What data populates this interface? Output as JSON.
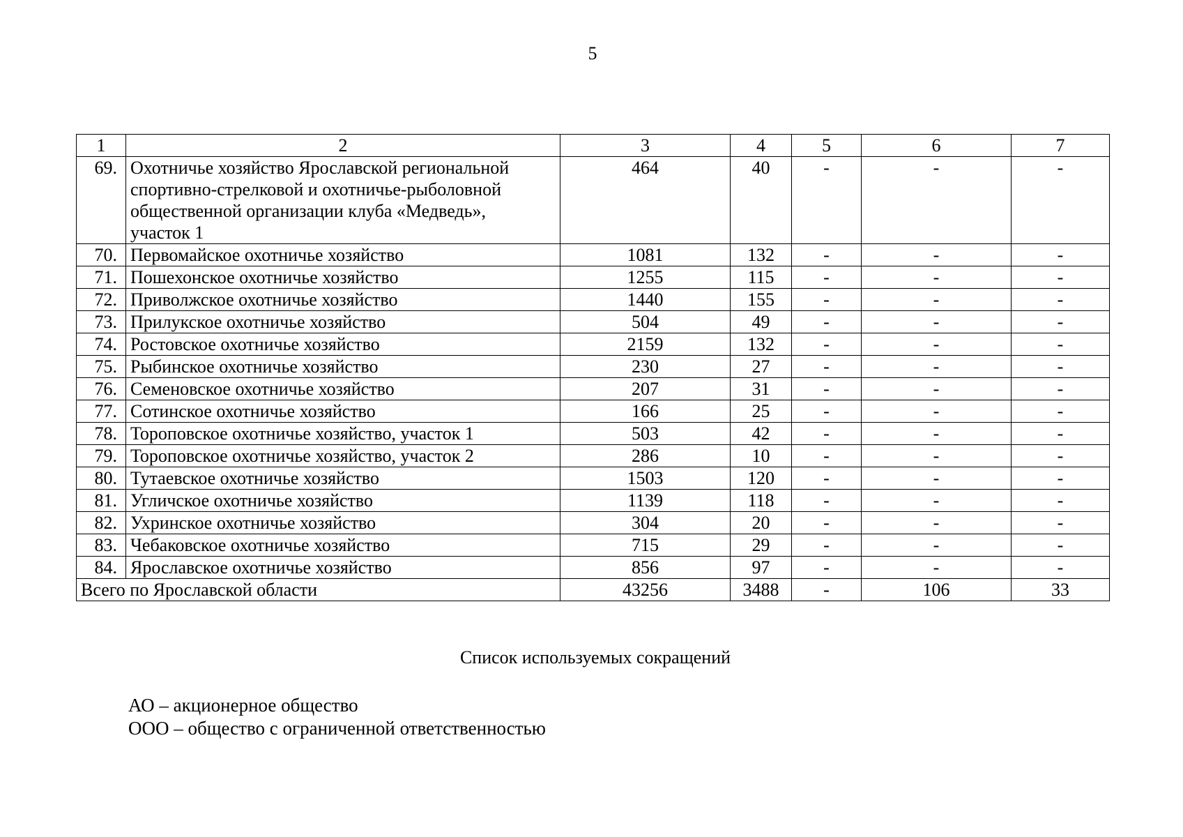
{
  "page_number": "5",
  "table": {
    "headers": [
      "1",
      "2",
      "3",
      "4",
      "5",
      "6",
      "7"
    ],
    "rows": [
      {
        "n": "69.",
        "name_lines": [
          "Охотничье хозяйство Ярославской региональной",
          "спортивно-стрелковой и охотничье-рыболовной",
          "общественной организации клуба «Медведь»,",
          "участок 1"
        ],
        "c3": "464",
        "c4": "40",
        "c5": "-",
        "c6": "-",
        "c7": "-"
      },
      {
        "n": "70.",
        "name": "Первомайское охотничье хозяйство",
        "c3": "1081",
        "c4": "132",
        "c5": "-",
        "c6": "-",
        "c7": "-"
      },
      {
        "n": "71.",
        "name": "Пошехонское охотничье хозяйство",
        "c3": "1255",
        "c4": "115",
        "c5": "-",
        "c6": "-",
        "c7": "-"
      },
      {
        "n": "72.",
        "name": "Приволжское охотничье хозяйство",
        "c3": "1440",
        "c4": "155",
        "c5": "-",
        "c6": "-",
        "c7": "-"
      },
      {
        "n": "73.",
        "name": "Прилукское охотничье хозяйство",
        "c3": "504",
        "c4": "49",
        "c5": "-",
        "c6": "-",
        "c7": "-"
      },
      {
        "n": "74.",
        "name": "Ростовское охотничье хозяйство",
        "c3": "2159",
        "c4": "132",
        "c5": "-",
        "c6": "-",
        "c7": "-"
      },
      {
        "n": "75.",
        "name": "Рыбинское охотничье хозяйство",
        "c3": "230",
        "c4": "27",
        "c5": "-",
        "c6": "-",
        "c7": "-"
      },
      {
        "n": "76.",
        "name": "Семеновское охотничье хозяйство",
        "c3": "207",
        "c4": "31",
        "c5": "-",
        "c6": "-",
        "c7": "-"
      },
      {
        "n": "77.",
        "name": "Сотинское охотничье хозяйство",
        "c3": "166",
        "c4": "25",
        "c5": "-",
        "c6": "-",
        "c7": "-"
      },
      {
        "n": "78.",
        "name": "Тороповское охотничье хозяйство, участок 1",
        "c3": "503",
        "c4": "42",
        "c5": "-",
        "c6": "-",
        "c7": "-"
      },
      {
        "n": "79.",
        "name": "Тороповское охотничье хозяйство, участок 2",
        "c3": "286",
        "c4": "10",
        "c5": "-",
        "c6": "-",
        "c7": "-"
      },
      {
        "n": "80.",
        "name": "Тутаевское охотничье хозяйство",
        "c3": "1503",
        "c4": "120",
        "c5": "-",
        "c6": "-",
        "c7": "-"
      },
      {
        "n": "81.",
        "name": "Угличское охотничье хозяйство",
        "c3": "1139",
        "c4": "118",
        "c5": "-",
        "c6": "-",
        "c7": "-"
      },
      {
        "n": "82.",
        "name": "Ухринское охотничье хозяйство",
        "c3": "304",
        "c4": "20",
        "c5": "-",
        "c6": "-",
        "c7": "-"
      },
      {
        "n": "83.",
        "name": "Чебаковское охотничье хозяйство",
        "c3": "715",
        "c4": "29",
        "c5": "-",
        "c6": "-",
        "c7": "-"
      },
      {
        "n": "84.",
        "name": "Ярославское охотничье хозяйство",
        "c3": "856",
        "c4": "97",
        "c5": "-",
        "c6": "-",
        "c7": "-"
      }
    ],
    "total": {
      "label": "Всего по Ярославской области",
      "c3": "43256",
      "c4": "3488",
      "c5": "-",
      "c6": "106",
      "c7": "33"
    }
  },
  "abbreviations": {
    "heading": "Список используемых сокращений",
    "items": [
      "АО – акционерное общество",
      "ООО – общество с ограниченной ответственностью"
    ]
  }
}
